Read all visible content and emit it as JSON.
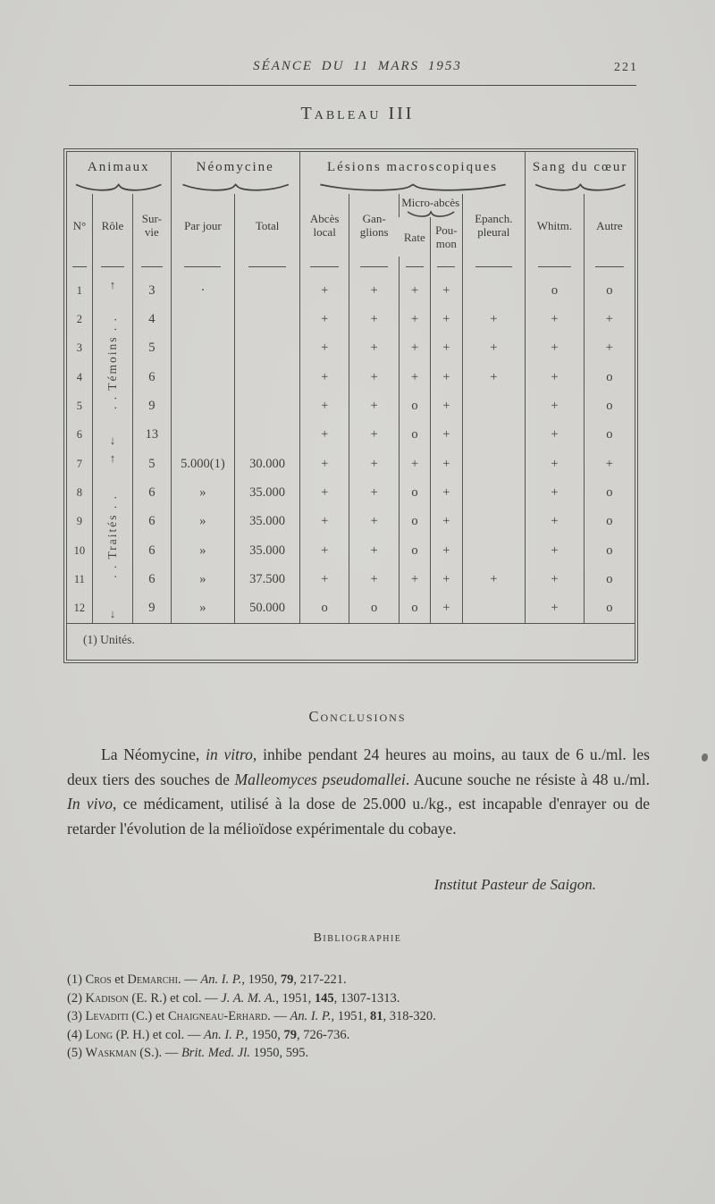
{
  "header": {
    "title": "SÉANCE DU 11 MARS 1953",
    "page_number": "221"
  },
  "table_title": "Tableau III",
  "table": {
    "group_labels": {
      "animaux": "Animaux",
      "neomycine": "Néomycine",
      "lesions": "Lésions macroscopiques",
      "sang": "Sang du cœur"
    },
    "cols": {
      "no": "N°",
      "role": "Rôle",
      "survie": [
        "Sur-",
        "vie"
      ],
      "par_jour": "Par jour",
      "total": "Total",
      "abces": [
        "Abcès",
        "local"
      ],
      "ganglions": [
        "Gan-",
        "glions"
      ],
      "micro": "Micro-abcès",
      "rate": "Rate",
      "poumon": [
        "Pou-",
        "mon"
      ],
      "epanch": [
        "Epanch.",
        "pleural"
      ],
      "whitm": "Whitm.",
      "autre": "Autre"
    },
    "role_groups": [
      {
        "arrow_top": "↑",
        "label": ". . Témoins . .",
        "arrow_bottom": "↓",
        "rows": [
          [
            "1",
            "3",
            "·",
            "",
            "+",
            "+",
            "+",
            "+",
            "",
            "o",
            "o"
          ],
          [
            "2",
            "4",
            "",
            "",
            "+",
            "+",
            "+",
            "+",
            "+",
            "+",
            "+"
          ],
          [
            "3",
            "5",
            "",
            "",
            "+",
            "+",
            "+",
            "+",
            "+",
            "+",
            "+"
          ],
          [
            "4",
            "6",
            "",
            "",
            "+",
            "+",
            "+",
            "+",
            "+",
            "+",
            "o"
          ],
          [
            "5",
            "9",
            "",
            "",
            "+",
            "+",
            "o",
            "+",
            "",
            "+",
            "o"
          ],
          [
            "6",
            "13",
            "",
            "",
            "+",
            "+",
            "o",
            "+",
            "",
            "+",
            "o"
          ]
        ]
      },
      {
        "arrow_top": "↑",
        "label": ". . Traités . .",
        "arrow_bottom": "↓",
        "rows": [
          [
            "7",
            "5",
            "5.000(1)",
            "30.000",
            "+",
            "+",
            "+",
            "+",
            "",
            "+",
            "+"
          ],
          [
            "8",
            "6",
            "»",
            "35.000",
            "+",
            "+",
            "o",
            "+",
            "",
            "+",
            "o"
          ],
          [
            "9",
            "6",
            "»",
            "35.000",
            "+",
            "+",
            "o",
            "+",
            "",
            "+",
            "o"
          ],
          [
            "10",
            "6",
            "»",
            "35.000",
            "+",
            "+",
            "o",
            "+",
            "",
            "+",
            "o"
          ],
          [
            "11",
            "6",
            "»",
            "37.500",
            "+",
            "+",
            "+",
            "+",
            "+",
            "+",
            "o"
          ],
          [
            "12",
            "9",
            "»",
            "50.000",
            "o",
            "o",
            "o",
            "+",
            "",
            "+",
            "o"
          ]
        ]
      }
    ],
    "footnote": "(1) Unités."
  },
  "conclusions": {
    "heading": "Conclusions",
    "segments": [
      {
        "t": "La Néomycine, ",
        "s": ""
      },
      {
        "t": "in vitro",
        "s": "i"
      },
      {
        "t": ", inhibe pendant 24 heures au moins, au taux de 6 u./ml. les deux tiers des souches de ",
        "s": ""
      },
      {
        "t": "Malleomyces pseudomallei",
        "s": "i"
      },
      {
        "t": ". Aucune souche ne résiste à 48 u./ml. ",
        "s": ""
      },
      {
        "t": "In vivo",
        "s": "i"
      },
      {
        "t": ", ce médicament, utilisé à la dose de 25.000 u./kg., est incapable d'enrayer ou de retarder l'évolution de la mélioïdose expérimentale du cobaye.",
        "s": ""
      }
    ],
    "signature": "Institut Pasteur de Saigon."
  },
  "bibliography": {
    "heading": "Bibliographie",
    "items": [
      {
        "segments": [
          {
            "t": "(1) ",
            "s": ""
          },
          {
            "t": "Cros",
            "s": "sc"
          },
          {
            "t": " et ",
            "s": ""
          },
          {
            "t": "Demarchi",
            "s": "sc"
          },
          {
            "t": ". — ",
            "s": ""
          },
          {
            "t": "An. I. P.",
            "s": "i"
          },
          {
            "t": ", 1950, ",
            "s": ""
          },
          {
            "t": "79",
            "s": "b"
          },
          {
            "t": ", 217-221.",
            "s": ""
          }
        ]
      },
      {
        "segments": [
          {
            "t": "(2) ",
            "s": ""
          },
          {
            "t": "Kadison",
            "s": "sc"
          },
          {
            "t": " (E. R.) et col. — ",
            "s": ""
          },
          {
            "t": "J. A. M. A.",
            "s": "i"
          },
          {
            "t": ", 1951, ",
            "s": ""
          },
          {
            "t": "145",
            "s": "b"
          },
          {
            "t": ", 1307-1313.",
            "s": ""
          }
        ]
      },
      {
        "segments": [
          {
            "t": "(3) ",
            "s": ""
          },
          {
            "t": "Levaditi",
            "s": "sc"
          },
          {
            "t": " (C.) et ",
            "s": ""
          },
          {
            "t": "Chaigneau-Erhard",
            "s": "sc"
          },
          {
            "t": ". — ",
            "s": ""
          },
          {
            "t": "An. I. P.",
            "s": "i"
          },
          {
            "t": ", 1951, ",
            "s": ""
          },
          {
            "t": "81",
            "s": "b"
          },
          {
            "t": ", 318-320.",
            "s": ""
          }
        ]
      },
      {
        "segments": [
          {
            "t": "(4) ",
            "s": ""
          },
          {
            "t": "Long",
            "s": "sc"
          },
          {
            "t": " (P. H.) et col. — ",
            "s": ""
          },
          {
            "t": "An. I. P.",
            "s": "i"
          },
          {
            "t": ", 1950, ",
            "s": ""
          },
          {
            "t": "79",
            "s": "b"
          },
          {
            "t": ", 726-736.",
            "s": ""
          }
        ]
      },
      {
        "segments": [
          {
            "t": "(5) ",
            "s": ""
          },
          {
            "t": "Waskman",
            "s": "sc"
          },
          {
            "t": " (S.). — ",
            "s": ""
          },
          {
            "t": "Brit. Med. Jl.",
            "s": "i"
          },
          {
            "t": " 1950, 595.",
            "s": ""
          }
        ]
      }
    ]
  }
}
